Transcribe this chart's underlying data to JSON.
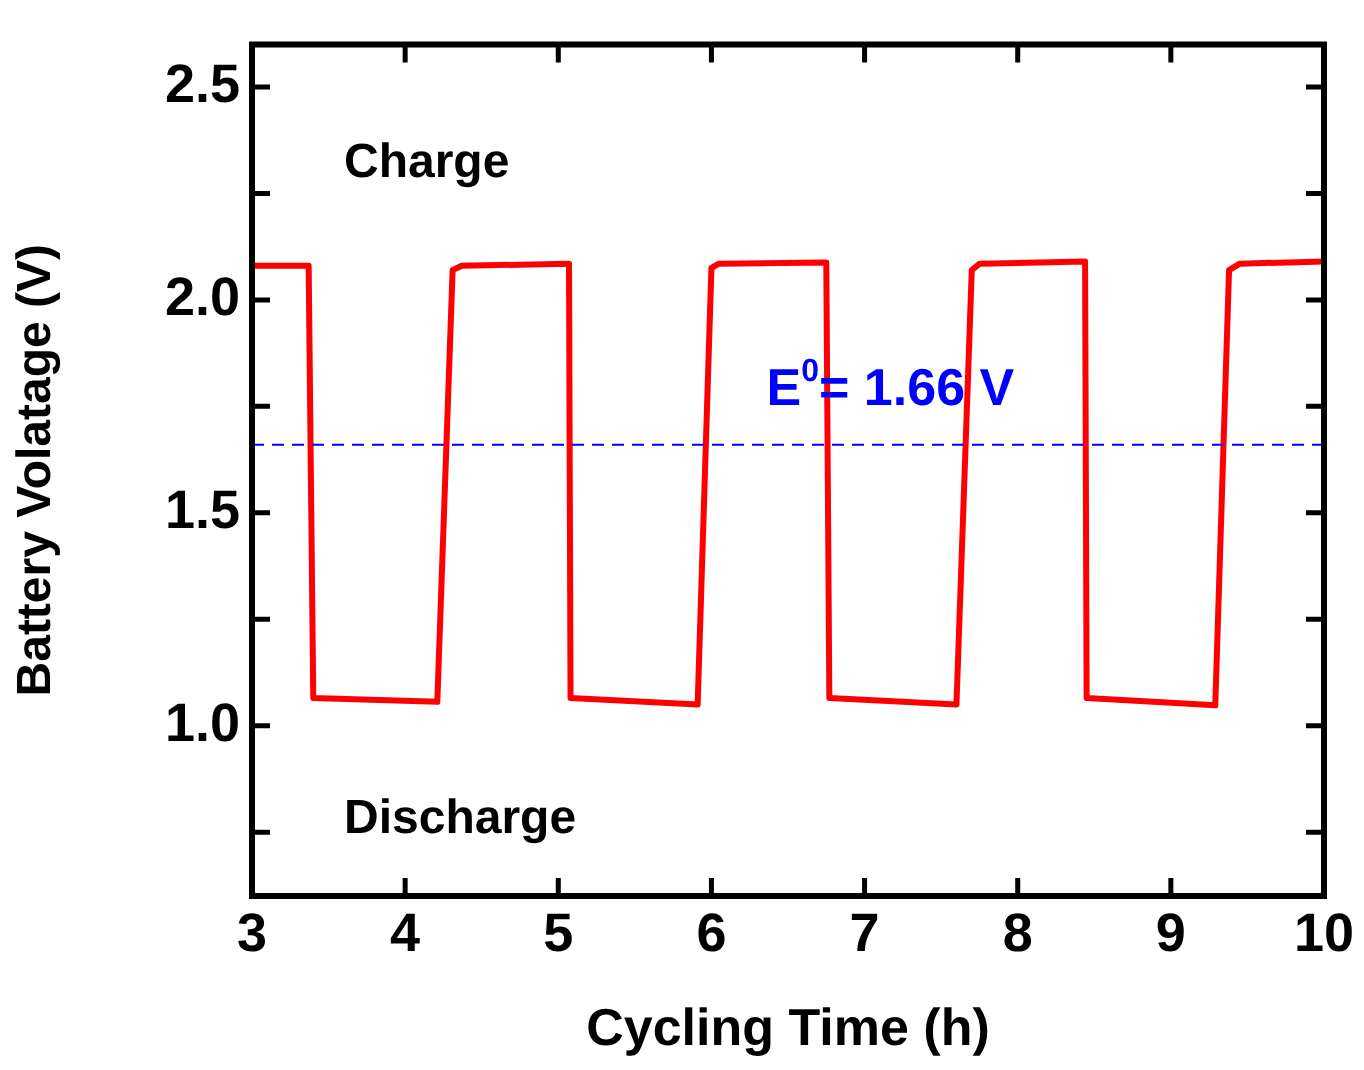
{
  "chart_data": {
    "type": "line",
    "xlabel": "Cycling Time (h)",
    "ylabel": "Battery Volatage (V)",
    "xlim": [
      3,
      10
    ],
    "xticks": [
      3,
      4,
      5,
      6,
      7,
      8,
      9,
      10
    ],
    "ylim": [
      0.6,
      2.6
    ],
    "yticks": [
      {
        "value": 0.75,
        "label": null
      },
      {
        "value": 1,
        "label": "1.0"
      },
      {
        "value": 1.25,
        "label": null
      },
      1.5,
      {
        "value": 1.75,
        "label": null
      },
      {
        "value": 2,
        "label": "2.0"
      },
      {
        "value": 2.25,
        "label": null
      },
      2.5
    ],
    "series": [
      {
        "color": "#ff0000",
        "x": [
          3,
          3.37,
          3.4,
          4.21,
          4.31,
          4.37,
          5.07,
          5.08,
          5.91,
          6.0,
          6.05,
          6.75,
          6.77,
          7.6,
          7.7,
          7.75,
          8.44,
          8.45,
          9.29,
          9.38,
          9.45,
          10
        ],
        "values": [
          2.08,
          2.08,
          1.065,
          1.056,
          2.07,
          2.08,
          2.085,
          1.065,
          1.05,
          2.075,
          2.085,
          2.088,
          1.065,
          1.05,
          2.07,
          2.085,
          2.09,
          1.065,
          1.048,
          2.07,
          2.085,
          2.09
        ]
      }
    ],
    "ref_lines": [
      {
        "axis": "y",
        "value": 1.66,
        "label": "E$^{0}$= 1.66 V",
        "color": "#0000ff",
        "line_style": "dashed"
      }
    ],
    "annotations": [
      "Charge",
      "Discharge"
    ],
    "marker": "none",
    "line_style": "solid",
    "grid": false,
    "legend": false
  }
}
